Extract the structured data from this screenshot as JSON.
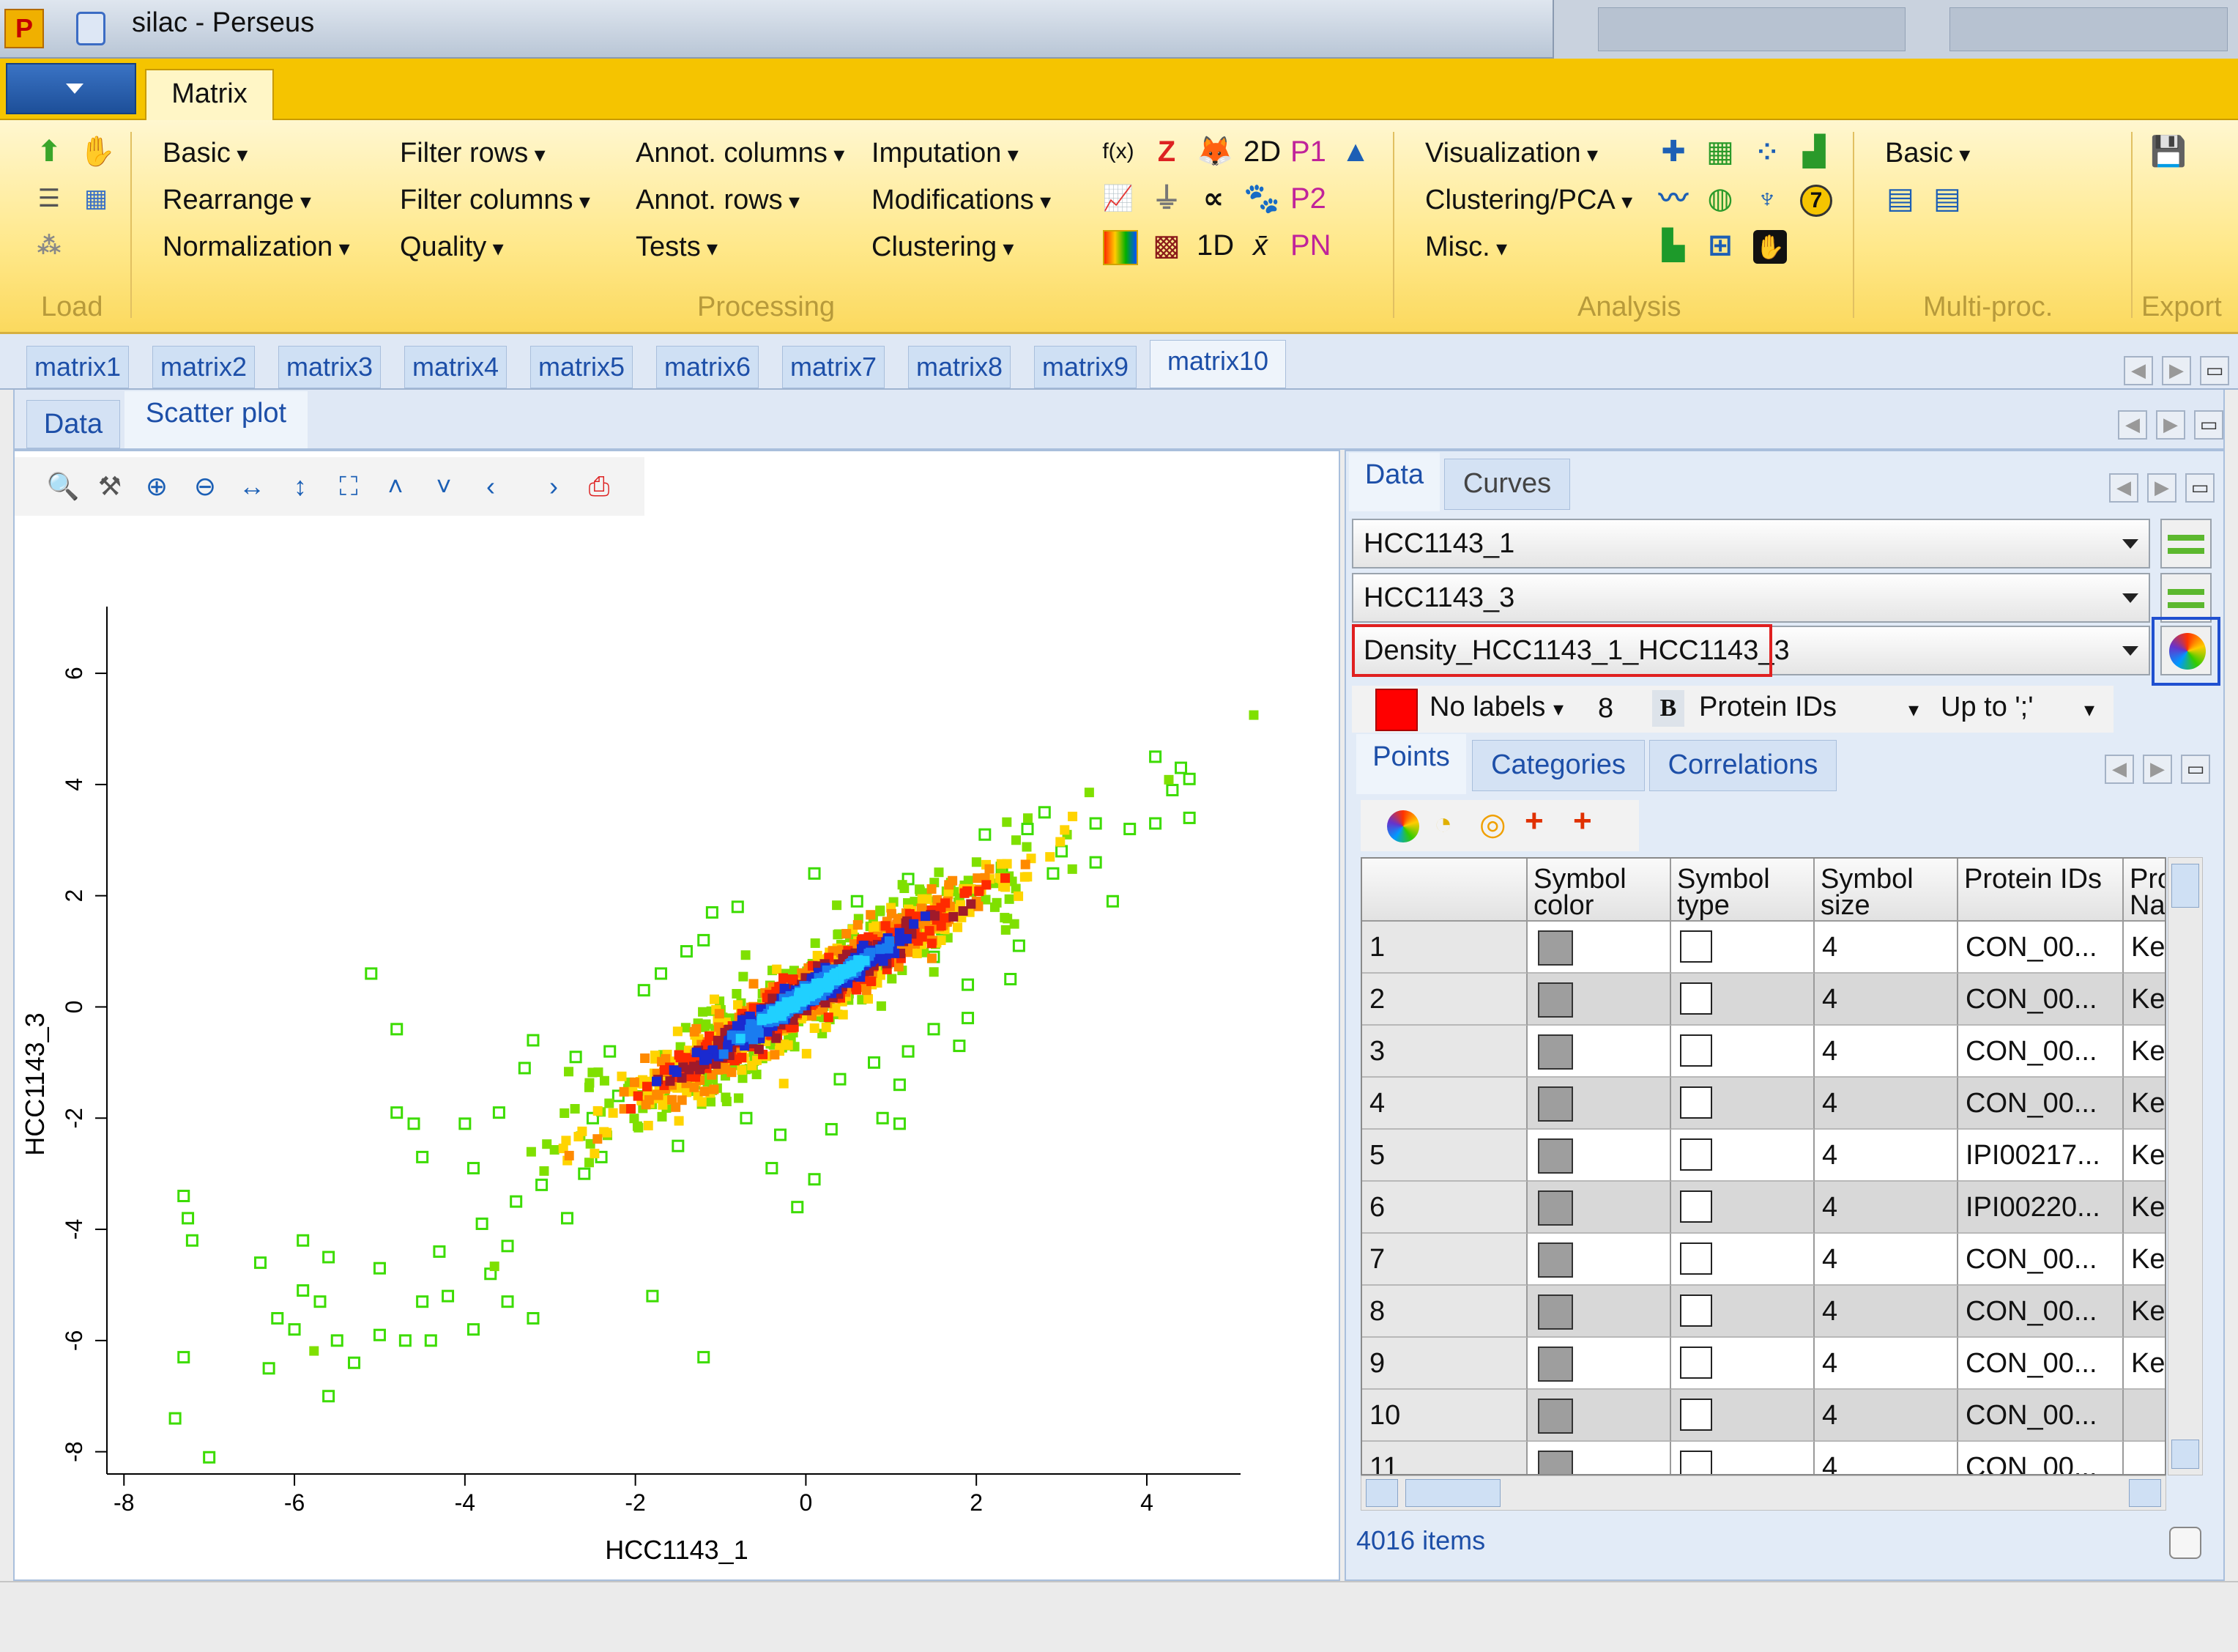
{
  "window": {
    "title": "silac  -  Perseus"
  },
  "ribbon_tab": "Matrix",
  "ribbon": {
    "processing": {
      "col1": [
        "Basic",
        "Rearrange",
        "Normalization"
      ],
      "col2": [
        "Filter rows",
        "Filter columns",
        "Quality"
      ],
      "col3": [
        "Annot. columns",
        "Annot. rows",
        "Tests"
      ],
      "col4": [
        "Imputation",
        "Modifications",
        "Clustering"
      ]
    },
    "analysis": [
      "Visualization",
      "Clustering/PCA",
      "Misc."
    ],
    "multiproc": [
      "Basic"
    ],
    "groups": {
      "load": "Load",
      "processing": "Processing",
      "analysis": "Analysis",
      "multiproc": "Multi-proc.",
      "export": "Export"
    },
    "icon_labels": {
      "fx": "f(x)",
      "z": "Z",
      "twod": "2D",
      "p1": "P1",
      "p2": "P2",
      "oned": "1D",
      "xbar": "x̄",
      "pn": "PN"
    }
  },
  "matrix_tabs": [
    "matrix1",
    "matrix2",
    "matrix3",
    "matrix4",
    "matrix5",
    "matrix6",
    "matrix7",
    "matrix8",
    "matrix9",
    "matrix10"
  ],
  "sub_tabs": [
    "Data",
    "Scatter plot"
  ],
  "right_tabs": [
    "Data",
    "Curves"
  ],
  "selectors": {
    "x": "HCC1143_1",
    "y": "HCC1143_3",
    "color": "Density_HCC1143_1_HCC1143_3"
  },
  "label_bar": {
    "labels": "No labels",
    "size": "8",
    "bold": "B",
    "id_col": "Protein IDs",
    "up_to": "Up to ';'"
  },
  "points_tabs": [
    "Points",
    "Categories",
    "Correlations"
  ],
  "table": {
    "headers": [
      "Symbol color",
      "Symbol type",
      "Symbol size",
      "Protein IDs",
      "Pro Na"
    ],
    "rows": [
      {
        "n": "1",
        "size": "4",
        "id": "CON_00...",
        "na": "Ke"
      },
      {
        "n": "2",
        "size": "4",
        "id": "CON_00...",
        "na": "Ke"
      },
      {
        "n": "3",
        "size": "4",
        "id": "CON_00...",
        "na": "Ke"
      },
      {
        "n": "4",
        "size": "4",
        "id": "CON_00...",
        "na": "Ke"
      },
      {
        "n": "5",
        "size": "4",
        "id": "IPI00217...",
        "na": "Ke"
      },
      {
        "n": "6",
        "size": "4",
        "id": "IPI00220...",
        "na": "Ke"
      },
      {
        "n": "7",
        "size": "4",
        "id": "CON_00...",
        "na": "Ke"
      },
      {
        "n": "8",
        "size": "4",
        "id": "CON_00...",
        "na": "Ke"
      },
      {
        "n": "9",
        "size": "4",
        "id": "CON_00...",
        "na": "Ke"
      },
      {
        "n": "10",
        "size": "4",
        "id": "CON_00...",
        "na": ""
      },
      {
        "n": "11",
        "size": "4",
        "id": "CON_00...",
        "na": ""
      }
    ]
  },
  "status": {
    "items": "4016 items"
  },
  "colors": {
    "ribbon": "#f5c400",
    "point_outline": "#3cdc00",
    "highlight_red": "#e02020",
    "highlight_blue": "#2050d0"
  },
  "chart_data": {
    "type": "scatter",
    "xlabel": "HCC1143_1",
    "ylabel": "HCC1143_3",
    "xlim": [
      -8.2,
      5.1
    ],
    "ylim": [
      -8.4,
      7.2
    ],
    "xticks": [
      -8,
      -6,
      -4,
      -2,
      0,
      2,
      4
    ],
    "yticks": [
      -8,
      -6,
      -4,
      -2,
      0,
      2,
      4,
      6
    ],
    "density_coloring": "Density_HCC1143_1_HCC1143_3",
    "n_points": 4016,
    "outlier_points": [
      [
        -7.3,
        -3.4
      ],
      [
        -7.25,
        -3.8
      ],
      [
        -7.2,
        -4.2
      ],
      [
        -7.3,
        -6.3
      ],
      [
        -7.4,
        -7.4
      ],
      [
        -7.0,
        -8.1
      ],
      [
        -5.1,
        0.6
      ],
      [
        -4.8,
        -0.4
      ],
      [
        -4.8,
        -1.9
      ],
      [
        -4.6,
        -2.1
      ],
      [
        -4.5,
        -2.7
      ],
      [
        -4.0,
        -2.1
      ],
      [
        -3.9,
        -2.9
      ],
      [
        -3.6,
        -1.9
      ],
      [
        -3.3,
        -1.1
      ],
      [
        -3.2,
        -0.6
      ],
      [
        -2.7,
        -0.9
      ],
      [
        -2.3,
        -0.8
      ],
      [
        -1.9,
        0.3
      ],
      [
        -1.7,
        0.6
      ],
      [
        -1.4,
        1.0
      ],
      [
        -1.2,
        1.2
      ],
      [
        -1.1,
        1.7
      ],
      [
        -0.8,
        1.8
      ],
      [
        0.1,
        2.4
      ],
      [
        0.6,
        1.9
      ],
      [
        1.2,
        2.3
      ],
      [
        2.1,
        3.1
      ],
      [
        2.6,
        3.2
      ],
      [
        2.8,
        3.5
      ],
      [
        3.4,
        3.3
      ],
      [
        3.8,
        3.2
      ],
      [
        4.1,
        3.3
      ],
      [
        4.1,
        4.5
      ],
      [
        4.3,
        3.9
      ],
      [
        4.4,
        4.3
      ],
      [
        4.5,
        3.4
      ],
      [
        4.5,
        4.1
      ],
      [
        3.4,
        2.6
      ],
      [
        3.6,
        1.9
      ],
      [
        -1.8,
        -5.2
      ],
      [
        -1.2,
        -6.3
      ],
      [
        -0.1,
        -3.6
      ],
      [
        0.1,
        -3.1
      ],
      [
        -0.3,
        -2.3
      ],
      [
        1.1,
        -2.1
      ],
      [
        1.1,
        -1.4
      ],
      [
        1.2,
        -0.8
      ],
      [
        1.9,
        -0.2
      ],
      [
        1.9,
        0.4
      ],
      [
        1.5,
        -0.4
      ],
      [
        1.8,
        -0.7
      ],
      [
        -5.9,
        -5.1
      ],
      [
        -5.5,
        -6.0
      ],
      [
        -5.7,
        -5.3
      ],
      [
        -6.2,
        -5.6
      ],
      [
        -5.3,
        -6.4
      ],
      [
        -5.6,
        -4.5
      ],
      [
        -5.9,
        -4.2
      ],
      [
        -5.6,
        -7.0
      ],
      [
        -5.0,
        -5.9
      ],
      [
        -4.7,
        -6.0
      ],
      [
        -4.5,
        -5.3
      ],
      [
        -6.4,
        -4.6
      ],
      [
        -6.3,
        -6.5
      ],
      [
        -6.0,
        -5.8
      ],
      [
        -5.0,
        -4.7
      ],
      [
        -4.4,
        -6.0
      ],
      [
        -3.9,
        -5.8
      ],
      [
        -3.5,
        -5.3
      ],
      [
        -3.2,
        -5.6
      ],
      [
        -4.3,
        -4.4
      ],
      [
        -3.8,
        -3.9
      ],
      [
        -3.5,
        -4.3
      ],
      [
        -3.4,
        -3.5
      ],
      [
        -3.1,
        -3.2
      ],
      [
        -2.8,
        -3.8
      ],
      [
        -2.6,
        -3.0
      ],
      [
        -3.7,
        -4.8
      ],
      [
        -4.2,
        -5.2
      ],
      [
        -2.4,
        -2.7
      ],
      [
        -2.2,
        -1.6
      ],
      [
        -2.5,
        -2.0
      ],
      [
        -1.6,
        -1.4
      ],
      [
        -1.5,
        -2.5
      ],
      [
        -0.7,
        -2.0
      ],
      [
        -0.4,
        -2.9
      ],
      [
        0.3,
        -2.2
      ],
      [
        0.9,
        -2.0
      ],
      [
        0.8,
        -1.0
      ],
      [
        0.4,
        -1.3
      ],
      [
        1.5,
        0.9
      ],
      [
        1.6,
        1.4
      ],
      [
        2.4,
        0.5
      ],
      [
        2.5,
        1.1
      ],
      [
        2.9,
        2.4
      ],
      [
        2.3,
        2.5
      ],
      [
        3.0,
        2.8
      ]
    ],
    "density_core": {
      "center": [
        0.0,
        0.2
      ],
      "slope": 0.93,
      "spread": "x approx -2.8 to 2.8"
    }
  }
}
